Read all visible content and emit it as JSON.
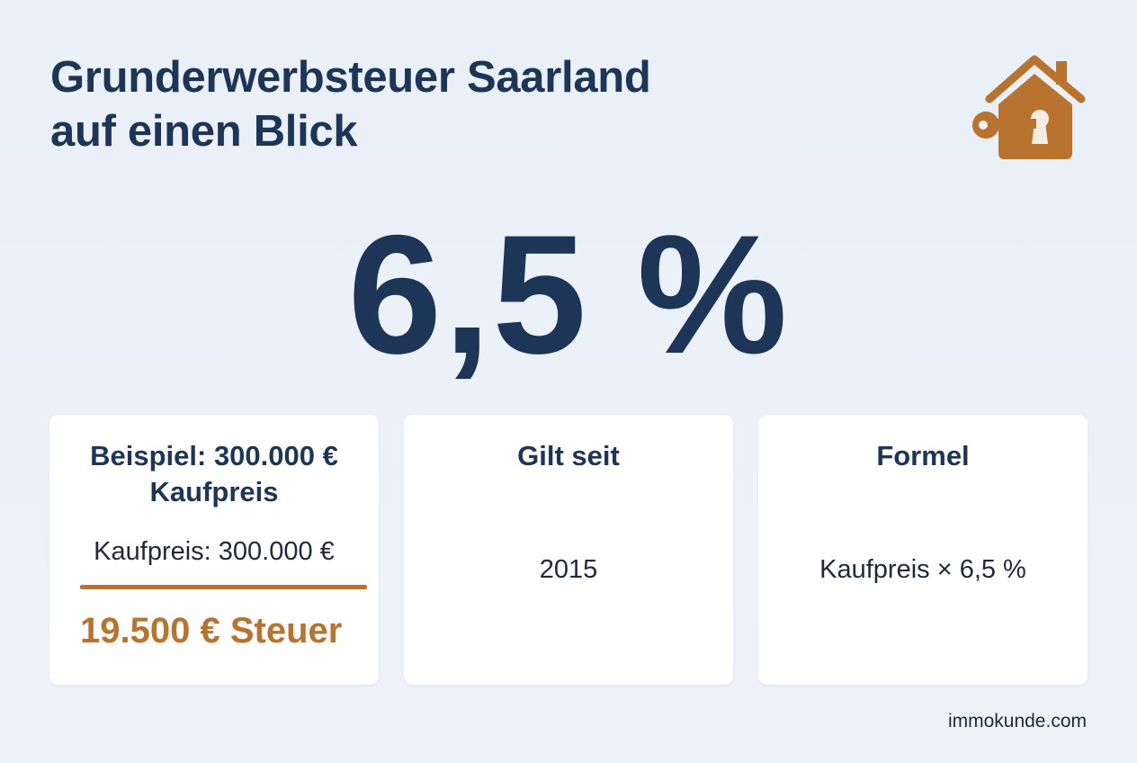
{
  "header": {
    "title_line1": "Grunderwerbsteuer Saarland",
    "title_line2": "auf einen Blick",
    "logo_icon": "house-key-icon"
  },
  "highlight": {
    "rate": "6,5 %"
  },
  "cards": [
    {
      "heading_line1": "Beispiel: 300.000 €",
      "heading_line2": "Kaufpreis",
      "price": "Kaufpreis: 300.000 €",
      "result": "19.500 € Steuer"
    },
    {
      "heading": "Gilt seit",
      "value": "2015"
    },
    {
      "heading": "Formel",
      "value": "Kaufpreis × 6,5 %"
    }
  ],
  "footer": {
    "source": "immokunde.com"
  },
  "colors": {
    "background": "#e9eff7",
    "primary": "#1d3557",
    "accent": "#b8742e",
    "card": "#ffffff"
  }
}
